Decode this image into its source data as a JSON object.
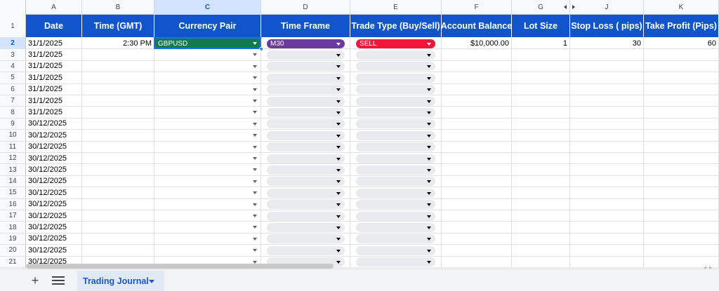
{
  "columns": [
    "A",
    "B",
    "C",
    "D",
    "E",
    "F",
    "G",
    "J",
    "K"
  ],
  "header_row": {
    "number": "1",
    "labels": [
      "Date",
      "Time (GMT)",
      "Currency Pair",
      "Time Frame",
      "Trade Type (Buy/Sell)",
      "Account Balance",
      "Lot Size",
      "Stop Loss ( pips)",
      "Take Profit (Pips)"
    ]
  },
  "first_entry": {
    "row_number": "2",
    "date": "31/1/2025",
    "time": "2:30 PM",
    "currency_pair": "GBPUSD",
    "time_frame": "M30",
    "trade_type": "SELL",
    "account_balance": "$10,000.00",
    "lot_size": "1",
    "stop_loss": "30",
    "take_profit": "60"
  },
  "rows": [
    {
      "n": "3",
      "date": "31/1/2025"
    },
    {
      "n": "4",
      "date": "31/1/2025"
    },
    {
      "n": "5",
      "date": "31/1/2025"
    },
    {
      "n": "6",
      "date": "31/1/2025"
    },
    {
      "n": "7",
      "date": "31/1/2025"
    },
    {
      "n": "8",
      "date": "31/1/2025"
    },
    {
      "n": "9",
      "date": "30/12/2025"
    },
    {
      "n": "10",
      "date": "30/12/2025"
    },
    {
      "n": "11",
      "date": "30/12/2025"
    },
    {
      "n": "12",
      "date": "30/12/2025"
    },
    {
      "n": "13",
      "date": "30/12/2025"
    },
    {
      "n": "14",
      "date": "30/12/2025"
    },
    {
      "n": "15",
      "date": "30/12/2025"
    },
    {
      "n": "16",
      "date": "30/12/2025"
    },
    {
      "n": "17",
      "date": "30/12/2025"
    },
    {
      "n": "18",
      "date": "30/12/2025"
    },
    {
      "n": "19",
      "date": "30/12/2025"
    },
    {
      "n": "20",
      "date": "30/12/2025"
    },
    {
      "n": "21",
      "date": "30/12/2025"
    }
  ],
  "selected_column": "C",
  "selected_row": "2",
  "sheet_tab": {
    "label": "Trading Journal"
  },
  "toolbar": {
    "add_label": "+"
  },
  "colors": {
    "header_bg": "#1155cc",
    "currency_chip": "#137a4c",
    "timeframe_chip": "#6a3b9c",
    "tradetype_chip": "#f2163a",
    "selection": "#1a73e8"
  }
}
